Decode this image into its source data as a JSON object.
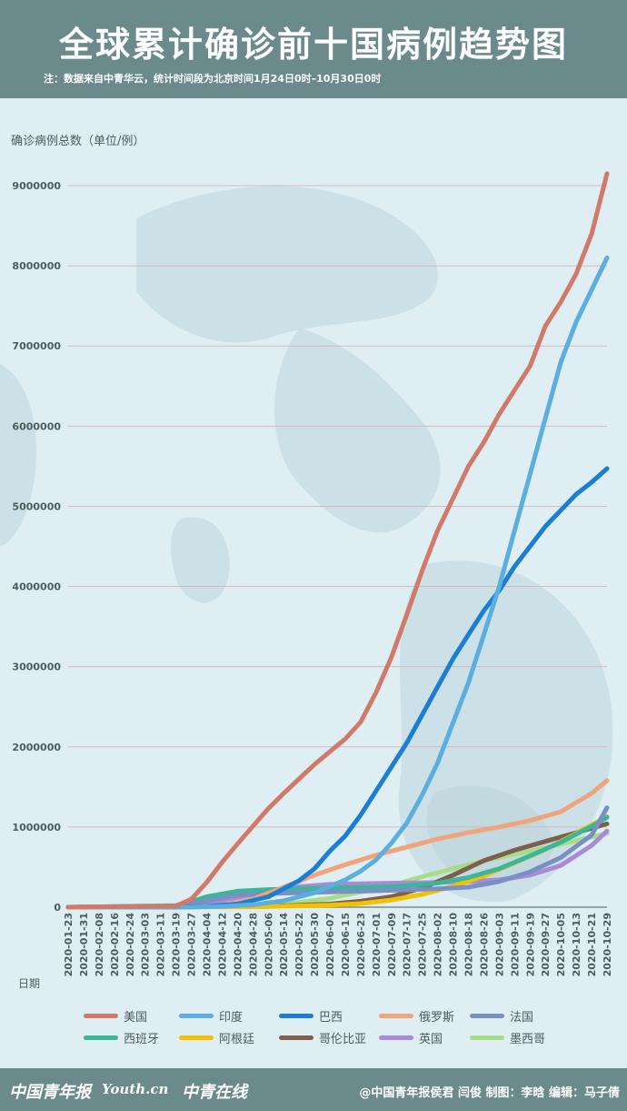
{
  "header": {
    "title": "全球累计确诊前十国病例趋势图",
    "note": "注：数据来自中青华云，统计时间段为北京时间1月24日0时–10月30日0时"
  },
  "footer": {
    "brand_1": "中国青年报",
    "brand_2": "Youth.cn",
    "brand_3": "中青在线",
    "credits": "@中国青年报侯君 闫俊 制图：李晗 编辑：马子倩"
  },
  "colors": {
    "header_bg": "#6b8a8c",
    "background": "#dfeef2"
  },
  "chart_data": {
    "type": "line",
    "title": "全球累计确诊前十国病例趋势图",
    "ylabel": "确诊病例总数（单位/例）",
    "xlabel": "日期",
    "ylim": [
      0,
      9000000
    ],
    "y_ticks": [
      "0",
      "1000000",
      "2000000",
      "3000000",
      "4000000",
      "5000000",
      "6000000",
      "7000000",
      "8000000",
      "9000000"
    ],
    "y_tick_values": [
      0,
      1000000,
      2000000,
      3000000,
      4000000,
      5000000,
      6000000,
      7000000,
      8000000,
      9000000
    ],
    "x_ticks": [
      "2020-01-23",
      "2020-01-31",
      "2020-02-08",
      "2020-02-16",
      "2020-02-24",
      "2020-03-03",
      "2020-03-11",
      "2020-03-19",
      "2020-03-27",
      "2020-04-04",
      "2020-04-12",
      "2020-04-20",
      "2020-04-28",
      "2020-05-06",
      "2020-05-14",
      "2020-05-22",
      "2020-05-30",
      "2020-06-07",
      "2020-06-15",
      "2020-06-23",
      "2020-07-01",
      "2020-07-09",
      "2020-07-17",
      "2020-07-25",
      "2020-08-02",
      "2020-08-10",
      "2020-08-18",
      "2020-08-26",
      "2020-09-03",
      "2020-09-11",
      "2020-09-19",
      "2020-09-27",
      "2020-10-05",
      "2020-10-13",
      "2020-10-21",
      "2020-10-29"
    ],
    "legend_position": "bottom",
    "grid": true,
    "series": [
      {
        "name": "美国",
        "color": "#d27a6a",
        "x": [
          "2020-01-23",
          "2020-03-19",
          "2020-03-27",
          "2020-04-04",
          "2020-04-12",
          "2020-04-20",
          "2020-04-28",
          "2020-05-06",
          "2020-05-14",
          "2020-05-22",
          "2020-05-30",
          "2020-06-07",
          "2020-06-15",
          "2020-06-23",
          "2020-07-01",
          "2020-07-09",
          "2020-07-17",
          "2020-07-25",
          "2020-08-02",
          "2020-08-10",
          "2020-08-18",
          "2020-08-26",
          "2020-09-03",
          "2020-09-11",
          "2020-09-19",
          "2020-09-27",
          "2020-10-05",
          "2020-10-13",
          "2020-10-21",
          "2020-10-29"
        ],
        "values": [
          0,
          15000,
          100000,
          310000,
          560000,
          790000,
          1010000,
          1230000,
          1420000,
          1600000,
          1780000,
          1940000,
          2100000,
          2310000,
          2680000,
          3120000,
          3650000,
          4200000,
          4700000,
          5100000,
          5500000,
          5800000,
          6150000,
          6450000,
          6750000,
          7250000,
          7550000,
          7900000,
          8400000,
          9150000
        ]
      },
      {
        "name": "印度",
        "color": "#5aaee0",
        "x": [
          "2020-01-23",
          "2020-03-27",
          "2020-04-12",
          "2020-04-28",
          "2020-05-14",
          "2020-05-30",
          "2020-06-15",
          "2020-06-23",
          "2020-07-01",
          "2020-07-09",
          "2020-07-17",
          "2020-07-25",
          "2020-08-02",
          "2020-08-10",
          "2020-08-18",
          "2020-08-26",
          "2020-09-03",
          "2020-09-11",
          "2020-09-19",
          "2020-09-27",
          "2020-10-05",
          "2020-10-13",
          "2020-10-21",
          "2020-10-29"
        ],
        "values": [
          0,
          1000,
          10000,
          30000,
          80000,
          180000,
          340000,
          450000,
          590000,
          800000,
          1050000,
          1400000,
          1800000,
          2300000,
          2800000,
          3400000,
          4000000,
          4700000,
          5400000,
          6100000,
          6800000,
          7300000,
          7700000,
          8100000
        ]
      },
      {
        "name": "巴西",
        "color": "#1a7fd4",
        "x": [
          "2020-01-23",
          "2020-03-19",
          "2020-04-04",
          "2020-04-20",
          "2020-05-06",
          "2020-05-22",
          "2020-05-30",
          "2020-06-07",
          "2020-06-15",
          "2020-06-23",
          "2020-07-01",
          "2020-07-09",
          "2020-07-17",
          "2020-07-25",
          "2020-08-02",
          "2020-08-10",
          "2020-08-18",
          "2020-08-26",
          "2020-09-03",
          "2020-09-11",
          "2020-09-19",
          "2020-09-27",
          "2020-10-05",
          "2020-10-13",
          "2020-10-21",
          "2020-10-29"
        ],
        "values": [
          0,
          600,
          10000,
          40000,
          130000,
          330000,
          480000,
          700000,
          890000,
          1150000,
          1450000,
          1750000,
          2050000,
          2400000,
          2750000,
          3100000,
          3400000,
          3700000,
          3950000,
          4250000,
          4500000,
          4750000,
          4950000,
          5150000,
          5300000,
          5470000
        ]
      },
      {
        "name": "俄罗斯",
        "color": "#f0a47c",
        "x": [
          "2020-01-23",
          "2020-03-27",
          "2020-04-12",
          "2020-04-28",
          "2020-05-14",
          "2020-05-30",
          "2020-06-15",
          "2020-07-01",
          "2020-07-17",
          "2020-08-02",
          "2020-08-18",
          "2020-09-03",
          "2020-09-19",
          "2020-10-05",
          "2020-10-21",
          "2020-10-29"
        ],
        "values": [
          0,
          1000,
          20000,
          100000,
          250000,
          400000,
          530000,
          650000,
          750000,
          850000,
          930000,
          1000000,
          1080000,
          1190000,
          1420000,
          1580000
        ]
      },
      {
        "name": "法国",
        "color": "#7a8fc4",
        "x": [
          "2020-01-23",
          "2020-03-19",
          "2020-04-04",
          "2020-04-20",
          "2020-05-06",
          "2020-06-07",
          "2020-07-09",
          "2020-08-02",
          "2020-08-18",
          "2020-09-03",
          "2020-09-19",
          "2020-10-05",
          "2020-10-21",
          "2020-10-29"
        ],
        "values": [
          0,
          10000,
          80000,
          150000,
          170000,
          190000,
          210000,
          230000,
          250000,
          320000,
          440000,
          620000,
          900000,
          1240000
        ]
      },
      {
        "name": "西班牙",
        "color": "#3cb59a",
        "x": [
          "2020-01-23",
          "2020-03-19",
          "2020-03-27",
          "2020-04-04",
          "2020-04-20",
          "2020-05-06",
          "2020-06-07",
          "2020-07-09",
          "2020-08-02",
          "2020-08-18",
          "2020-09-03",
          "2020-09-19",
          "2020-10-05",
          "2020-10-21",
          "2020-10-29"
        ],
        "values": [
          0,
          20000,
          70000,
          130000,
          200000,
          220000,
          240000,
          255000,
          300000,
          370000,
          480000,
          640000,
          810000,
          1010000,
          1120000
        ]
      },
      {
        "name": "阿根廷",
        "color": "#f2c200",
        "x": [
          "2020-01-23",
          "2020-04-28",
          "2020-06-07",
          "2020-06-23",
          "2020-07-09",
          "2020-07-25",
          "2020-08-10",
          "2020-08-26",
          "2020-09-11",
          "2020-09-27",
          "2020-10-13",
          "2020-10-29"
        ],
        "values": [
          0,
          5000,
          25000,
          45000,
          90000,
          160000,
          260000,
          390000,
          550000,
          720000,
          920000,
          1130000
        ]
      },
      {
        "name": "哥伦比亚",
        "color": "#7e5e4c",
        "x": [
          "2020-01-23",
          "2020-05-06",
          "2020-06-07",
          "2020-06-23",
          "2020-07-09",
          "2020-07-25",
          "2020-08-10",
          "2020-08-26",
          "2020-09-11",
          "2020-09-27",
          "2020-10-13",
          "2020-10-29"
        ],
        "values": [
          0,
          10000,
          40000,
          75000,
          130000,
          240000,
          400000,
          580000,
          710000,
          820000,
          930000,
          1040000
        ]
      },
      {
        "name": "英国",
        "color": "#a98ad6",
        "x": [
          "2020-01-23",
          "2020-03-19",
          "2020-04-04",
          "2020-04-20",
          "2020-05-06",
          "2020-05-22",
          "2020-06-07",
          "2020-07-09",
          "2020-08-02",
          "2020-08-18",
          "2020-09-03",
          "2020-09-19",
          "2020-10-05",
          "2020-10-21",
          "2020-10-29"
        ],
        "values": [
          0,
          3000,
          40000,
          120000,
          200000,
          255000,
          285000,
          300000,
          310000,
          320000,
          340000,
          400000,
          520000,
          770000,
          950000
        ]
      },
      {
        "name": "墨西哥",
        "color": "#a8dc86",
        "x": [
          "2020-01-23",
          "2020-04-28",
          "2020-05-22",
          "2020-06-07",
          "2020-06-23",
          "2020-07-09",
          "2020-07-25",
          "2020-08-10",
          "2020-08-26",
          "2020-09-11",
          "2020-09-27",
          "2020-10-13",
          "2020-10-29"
        ],
        "values": [
          0,
          15000,
          60000,
          110000,
          190000,
          270000,
          380000,
          480000,
          580000,
          660000,
          740000,
          830000,
          920000
        ]
      }
    ]
  }
}
